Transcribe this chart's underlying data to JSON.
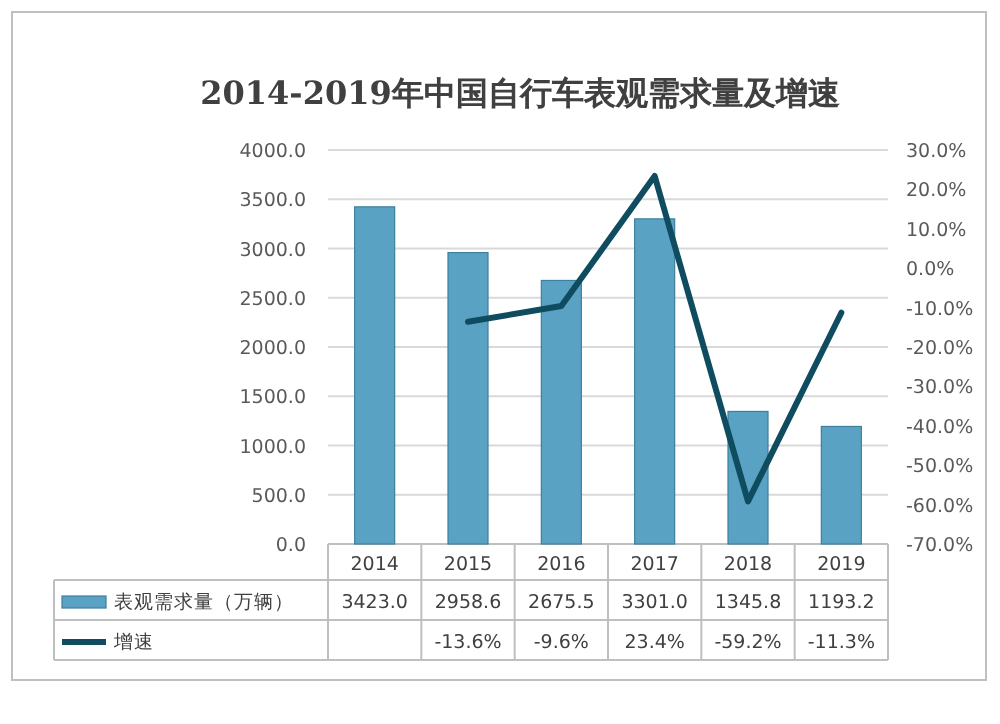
{
  "chart_data": {
    "type": "bar",
    "title": "2014-2019年中国自行车表观需求量及增速",
    "categories": [
      "2014",
      "2015",
      "2016",
      "2017",
      "2018",
      "2019"
    ],
    "series": [
      {
        "name": "表观需求量（万辆）",
        "color": "#5aa2c4",
        "values": [
          3423.0,
          2958.6,
          2675.5,
          3301.0,
          1345.8,
          1193.2
        ],
        "value_labels": [
          "3423.0",
          "2958.6",
          "2675.5",
          "3301.0",
          "1345.8",
          "1193.2"
        ]
      },
      {
        "name": "增速",
        "type": "line",
        "axis": "y2",
        "color": "#0f4c5f",
        "values": [
          null,
          -13.6,
          -9.6,
          23.4,
          -59.2,
          -11.3
        ],
        "value_labels": [
          null,
          "-13.6%",
          "-9.6%",
          "23.4%",
          "-59.2%",
          "-11.3%"
        ]
      }
    ],
    "ylim": [
      0,
      4000
    ],
    "yticks": [
      {
        "value": 0,
        "label": "0.0"
      },
      {
        "value": 500,
        "label": "500.0"
      },
      {
        "value": 1000,
        "label": "1000.0"
      },
      {
        "value": 1500,
        "label": "1500.0"
      },
      {
        "value": 2000,
        "label": "2000.0"
      },
      {
        "value": 2500,
        "label": "2500.0"
      },
      {
        "value": 3000,
        "label": "3000.0"
      },
      {
        "value": 3500,
        "label": "3500.0"
      },
      {
        "value": 4000,
        "label": "4000.0"
      }
    ],
    "y2lim": [
      -70,
      30
    ],
    "y2ticks": [
      {
        "value": -70,
        "label": "-70.0%"
      },
      {
        "value": -60,
        "label": "-60.0%"
      },
      {
        "value": -50,
        "label": "-50.0%"
      },
      {
        "value": -40,
        "label": "-40.0%"
      },
      {
        "value": -30,
        "label": "-30.0%"
      },
      {
        "value": -20,
        "label": "-20.0%"
      },
      {
        "value": -10,
        "label": "-10.0%"
      },
      {
        "value": 0,
        "label": "0.0%"
      },
      {
        "value": 10,
        "label": "10.0%"
      },
      {
        "value": 20,
        "label": "20.0%"
      },
      {
        "value": 30,
        "label": "30.0%"
      }
    ],
    "grid": "y",
    "legend": "bottom left"
  }
}
